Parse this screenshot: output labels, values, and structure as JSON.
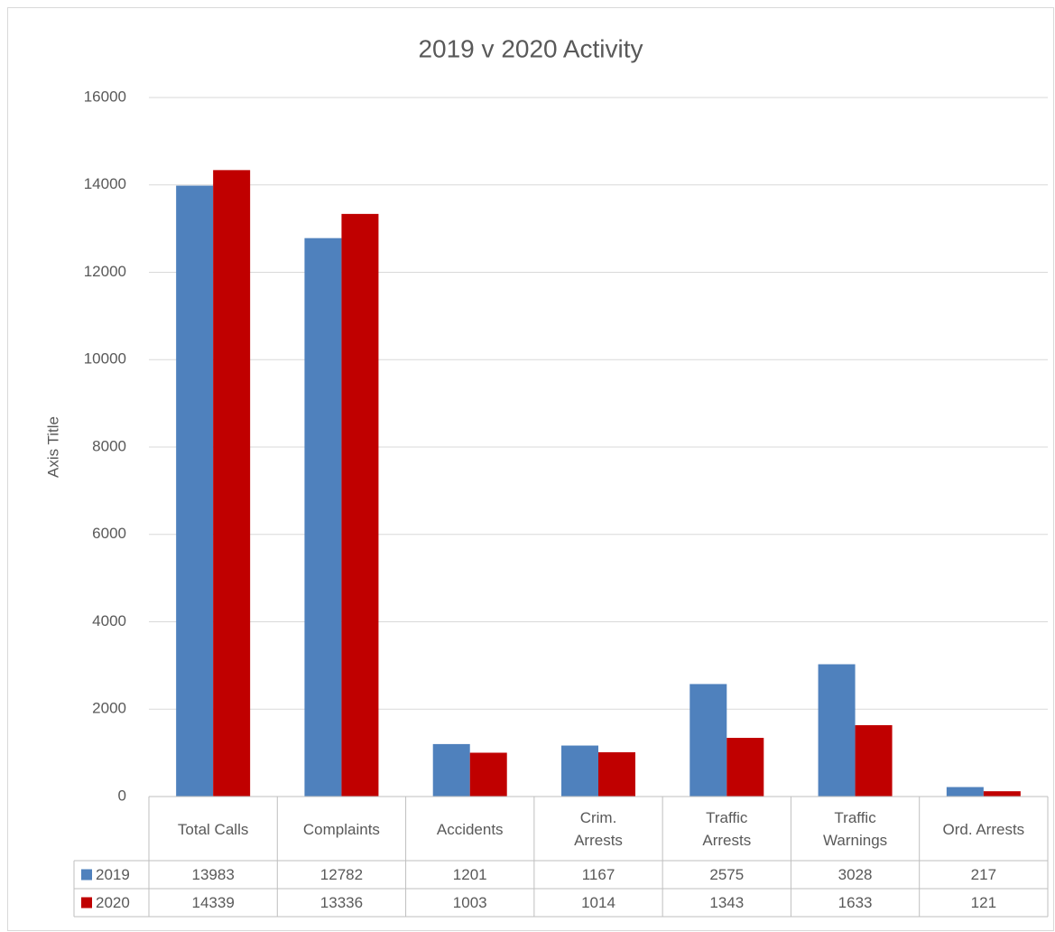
{
  "chart_data": {
    "type": "bar",
    "title": "2019 v 2020 Activity",
    "y_label": "Axis Title",
    "categories": [
      "Total Calls",
      "Complaints",
      "Accidents",
      "Crim. Arrests",
      "Traffic Arrests",
      "Traffic Warnings",
      "Ord. Arrests"
    ],
    "series": [
      {
        "name": "2019",
        "color": "#4f81bd",
        "values": [
          13983,
          12782,
          1201,
          1167,
          2575,
          3028,
          217
        ]
      },
      {
        "name": "2020",
        "color": "#c00000",
        "values": [
          14339,
          13336,
          1003,
          1014,
          1343,
          1633,
          121
        ]
      }
    ],
    "ylim": [
      0,
      16000
    ],
    "yticks": [
      0,
      2000,
      4000,
      6000,
      8000,
      10000,
      12000,
      14000,
      16000
    ],
    "grid": true,
    "data_table": true
  }
}
